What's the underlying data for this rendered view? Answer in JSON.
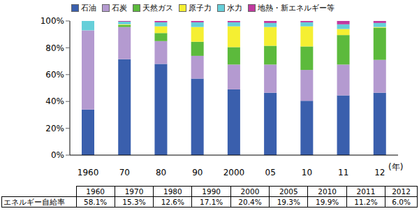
{
  "chart_data": {
    "type": "bar",
    "stacked": true,
    "xlabel": "(年)",
    "categories": [
      "1960",
      "70",
      "80",
      "90",
      "2000",
      "05",
      "10",
      "11",
      "12"
    ],
    "series": [
      {
        "name": "石油",
        "color": "#3a5fad",
        "values": [
          34,
          71.5,
          68,
          57,
          49,
          46.5,
          40.5,
          44.5,
          46.5
        ]
      },
      {
        "name": "石炭",
        "color": "#b49ad0",
        "values": [
          59,
          24,
          17,
          17,
          18.5,
          21,
          23,
          23,
          24.5
        ]
      },
      {
        "name": "天然ガス",
        "color": "#5cba3c",
        "values": [
          0,
          1.5,
          6,
          10.5,
          13,
          14,
          17.5,
          22,
          24
        ]
      },
      {
        "name": "原子力",
        "color": "#f5ef32",
        "values": [
          0,
          0.5,
          5,
          11,
          15.5,
          14,
          15,
          4.5,
          0.5
        ]
      },
      {
        "name": "水力",
        "color": "#66cfd9",
        "values": [
          7,
          2,
          3,
          3.5,
          3,
          3,
          3,
          3.5,
          3
        ]
      },
      {
        "name": "地熱・新エネルギー等",
        "color": "#c0399f",
        "values": [
          0,
          0.5,
          1,
          1,
          1,
          1.5,
          1,
          2.5,
          1.5
        ]
      }
    ],
    "ylim": [
      0,
      100
    ],
    "yticks": [
      {
        "value": 0,
        "label": "0%"
      },
      {
        "value": 20,
        "label": "20%"
      },
      {
        "value": 40,
        "label": "40%"
      },
      {
        "value": 60,
        "label": "60%"
      },
      {
        "value": 80,
        "label": "80%"
      },
      {
        "value": 100,
        "label": "100%"
      }
    ],
    "grid": false,
    "legend": "top"
  },
  "table": {
    "header": [
      "1960",
      "1970",
      "1980",
      "1990",
      "2000",
      "2005",
      "2010",
      "2011",
      "2012"
    ],
    "rows": [
      [
        "エネルギー自給率",
        "58.1%",
        "15.3%",
        "12.6%",
        "17.1%",
        "20.4%",
        "19.3%",
        "19.9%",
        "11.2%",
        "6.0%"
      ]
    ]
  }
}
